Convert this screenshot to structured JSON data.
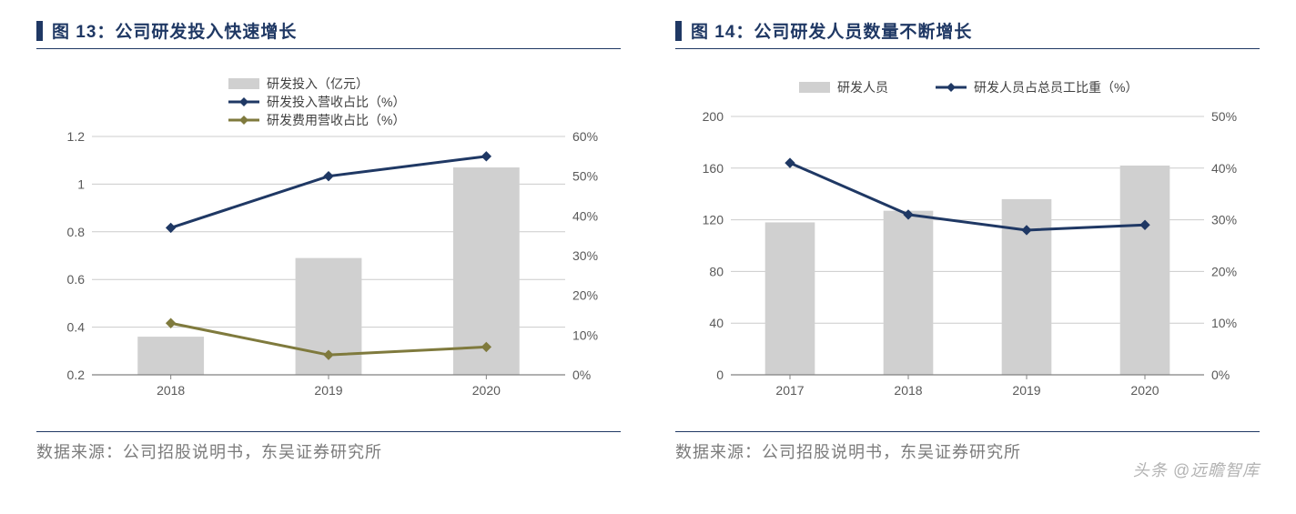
{
  "left": {
    "title_prefix": "图 13：",
    "title": "公司研发投入快速增长",
    "source": "数据来源：公司招股说明书，东吴证券研究所",
    "chart": {
      "type": "combo-bar-line-dual-axis",
      "categories": [
        "2018",
        "2019",
        "2020"
      ],
      "bar": {
        "label": "研发投入（亿元）",
        "values": [
          0.36,
          0.69,
          1.07
        ],
        "color": "#d0d0d0",
        "bar_width": 0.42
      },
      "line1": {
        "label": "研发投入营收占比（%）",
        "values": [
          37,
          50,
          55
        ],
        "color": "#1f3864",
        "stroke_width": 3,
        "marker": "diamond"
      },
      "line2": {
        "label": "研发费用营收占比（%）",
        "values": [
          13,
          5,
          7
        ],
        "color": "#7f7a3d",
        "stroke_width": 3,
        "marker": "diamond"
      },
      "y_left": {
        "min": 0.2,
        "max": 1.2,
        "step": 0.2
      },
      "y_right": {
        "min": 0,
        "max": 60,
        "step": 10,
        "suffix": "%"
      },
      "grid_color": "#cccccc",
      "axis_color": "#808080",
      "background": "#ffffff",
      "tick_fontsize": 14
    }
  },
  "right": {
    "title_prefix": "图 14：",
    "title": "公司研发人员数量不断增长",
    "source": "数据来源：公司招股说明书，东吴证券研究所",
    "chart": {
      "type": "combo-bar-line-dual-axis",
      "categories": [
        "2017",
        "2018",
        "2019",
        "2020"
      ],
      "bar": {
        "label": "研发人员",
        "values": [
          118,
          127,
          136,
          162
        ],
        "color": "#d0d0d0",
        "bar_width": 0.42
      },
      "line1": {
        "label": "研发人员占总员工比重（%）",
        "values": [
          41,
          31,
          28,
          29
        ],
        "color": "#1f3864",
        "stroke_width": 3,
        "marker": "diamond"
      },
      "y_left": {
        "min": 0,
        "max": 200,
        "step": 40
      },
      "y_right": {
        "min": 0,
        "max": 50,
        "step": 10,
        "suffix": "%"
      },
      "grid_color": "#cccccc",
      "axis_color": "#808080",
      "background": "#ffffff",
      "tick_fontsize": 14
    }
  },
  "watermark": "头条 @远瞻智库"
}
